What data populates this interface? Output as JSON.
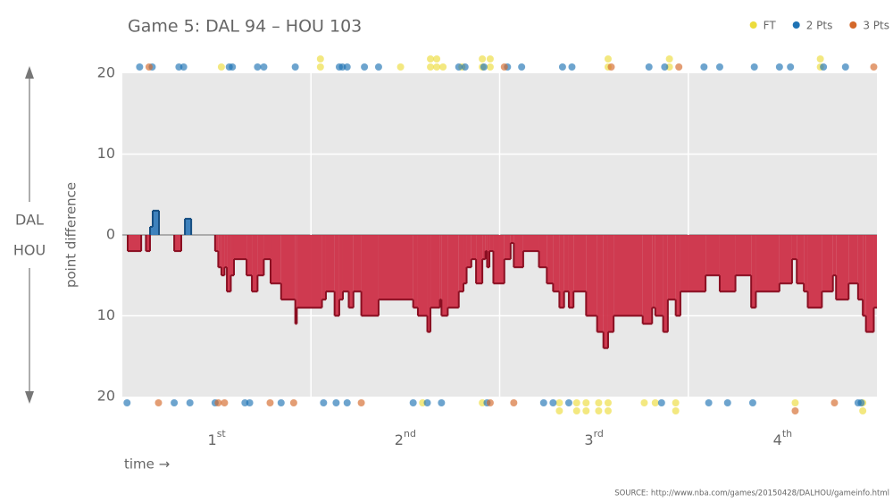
{
  "chart_data": {
    "type": "step-area",
    "title": "Game 5: DAL 94  –  HOU 103",
    "ylabel": "point difference",
    "xlabel": "time →",
    "upper_label": "DAL",
    "lower_label": "HOU",
    "source": "SOURCE: http://www.nba.com/games/20150428/DALHOU/gameinfo.html",
    "xlim": [
      0,
      48
    ],
    "xticks": [
      {
        "value": 6,
        "label": "1st"
      },
      {
        "value": 18,
        "label": "2nd"
      },
      {
        "value": 30,
        "label": "3rd"
      },
      {
        "value": 42,
        "label": "4th"
      }
    ],
    "xgrid": [
      12,
      24,
      36
    ],
    "ylim": [
      -20,
      20
    ],
    "yticks": [
      {
        "value": -20,
        "label": "20"
      },
      {
        "value": -10,
        "label": "10"
      },
      0,
      10,
      20
    ],
    "grid": true,
    "positive_color": "#2f78b8",
    "negative_color": "#cc2a42",
    "x": [
      0,
      0.34,
      1.2,
      1.5,
      1.76,
      1.93,
      2.33,
      3.3,
      3.75,
      3.98,
      4.38,
      5.9,
      6.1,
      6.3,
      6.5,
      6.65,
      6.9,
      7.1,
      7.9,
      8.24,
      8.6,
      9,
      9.43,
      10.1,
      11,
      11.1,
      12.7,
      12.95,
      13.5,
      13.8,
      14.03,
      14.4,
      14.7,
      15.2,
      16.3,
      18.5,
      18.8,
      19.4,
      19.6,
      20.2,
      20.3,
      20.7,
      21.4,
      21.7,
      21.9,
      22.2,
      22.5,
      22.9,
      23.1,
      23.2,
      23.35,
      23.6,
      24.3,
      24.7,
      24.9,
      25.5,
      26.5,
      27,
      27.4,
      27.8,
      28.1,
      28.4,
      28.7,
      29.5,
      30.2,
      30.6,
      30.9,
      31.25,
      33.1,
      33.7,
      33.9,
      34.4,
      34.7,
      35.2,
      35.5,
      37.1,
      38,
      39,
      40,
      40.3,
      41.8,
      42.6,
      42.9,
      43.35,
      43.6,
      44.5,
      45.2,
      45.4,
      46.2,
      46.8,
      47.1,
      47.3,
      47.8
    ],
    "values": [
      0,
      -2,
      0,
      -2,
      1,
      3,
      0,
      -2,
      0,
      2,
      0,
      -2,
      -4,
      -5,
      -4,
      -7,
      -5,
      -3,
      -5,
      -7,
      -5,
      -3,
      -6,
      -8,
      -11,
      -9,
      -8,
      -7,
      -10,
      -8,
      -7,
      -9,
      -7,
      -10,
      -8,
      -9,
      -10,
      -12,
      -9,
      -8,
      -10,
      -9,
      -7,
      -6,
      -4,
      -3,
      -6,
      -3,
      -2,
      -4,
      -2,
      -6,
      -3,
      -1,
      -4,
      -2,
      -4,
      -6,
      -7,
      -9,
      -7,
      -9,
      -7,
      -10,
      -12,
      -14,
      -12,
      -10,
      -11,
      -9,
      -10,
      -12,
      -8,
      -10,
      -7,
      -5,
      -7,
      -5,
      -9,
      -7,
      -6,
      -3,
      -6,
      -7,
      -9,
      -7,
      -5,
      -8,
      -6,
      -8,
      -10,
      -12,
      -9
    ],
    "legend": "top-right",
    "series": [
      {
        "name": "FT",
        "color": "#ecdc3c",
        "DAL": [
          6.3,
          12.6,
          12.6,
          17.7,
          19.6,
          19.6,
          20,
          20,
          20.4,
          21.6,
          22.9,
          22.9,
          23.4,
          23.4,
          30.9,
          30.9,
          34.8,
          34.8,
          44.4,
          44.4
        ],
        "HOU": [
          19.1,
          22.9,
          27.8,
          27.8,
          28.9,
          28.9,
          29.5,
          29.5,
          30.3,
          30.3,
          30.9,
          30.9,
          33.2,
          33.9,
          35.2,
          35.2,
          42.8,
          47.1,
          47.1
        ]
      },
      {
        "name": "2 Pts",
        "color": "#1f73b4",
        "DAL": [
          1.1,
          1.9,
          3.6,
          3.9,
          6.8,
          7,
          8.6,
          9,
          11,
          13.8,
          14,
          14.3,
          15.4,
          16.3,
          21.4,
          21.8,
          23,
          24.5,
          25.4,
          28,
          28.6,
          33.5,
          34.5,
          37,
          38,
          40.2,
          41.8,
          42.5,
          44.6,
          46
        ],
        "HOU": [
          0.3,
          3.3,
          4.3,
          5.9,
          7.8,
          8.1,
          10.1,
          12.8,
          13.6,
          14.3,
          18.5,
          19.4,
          20.3,
          23.2,
          26.8,
          27.4,
          28.4,
          34.3,
          37.3,
          38.5,
          40.1,
          46.8,
          47
        ]
      },
      {
        "name": "3 Pts",
        "color": "#d4682a",
        "DAL": [
          1.7,
          24.3,
          31.1,
          35.4,
          47.8
        ],
        "HOU": [
          2.3,
          6.1,
          6.5,
          9.4,
          10.9,
          15.2,
          23.4,
          24.9,
          42.8,
          45.3
        ]
      }
    ]
  }
}
